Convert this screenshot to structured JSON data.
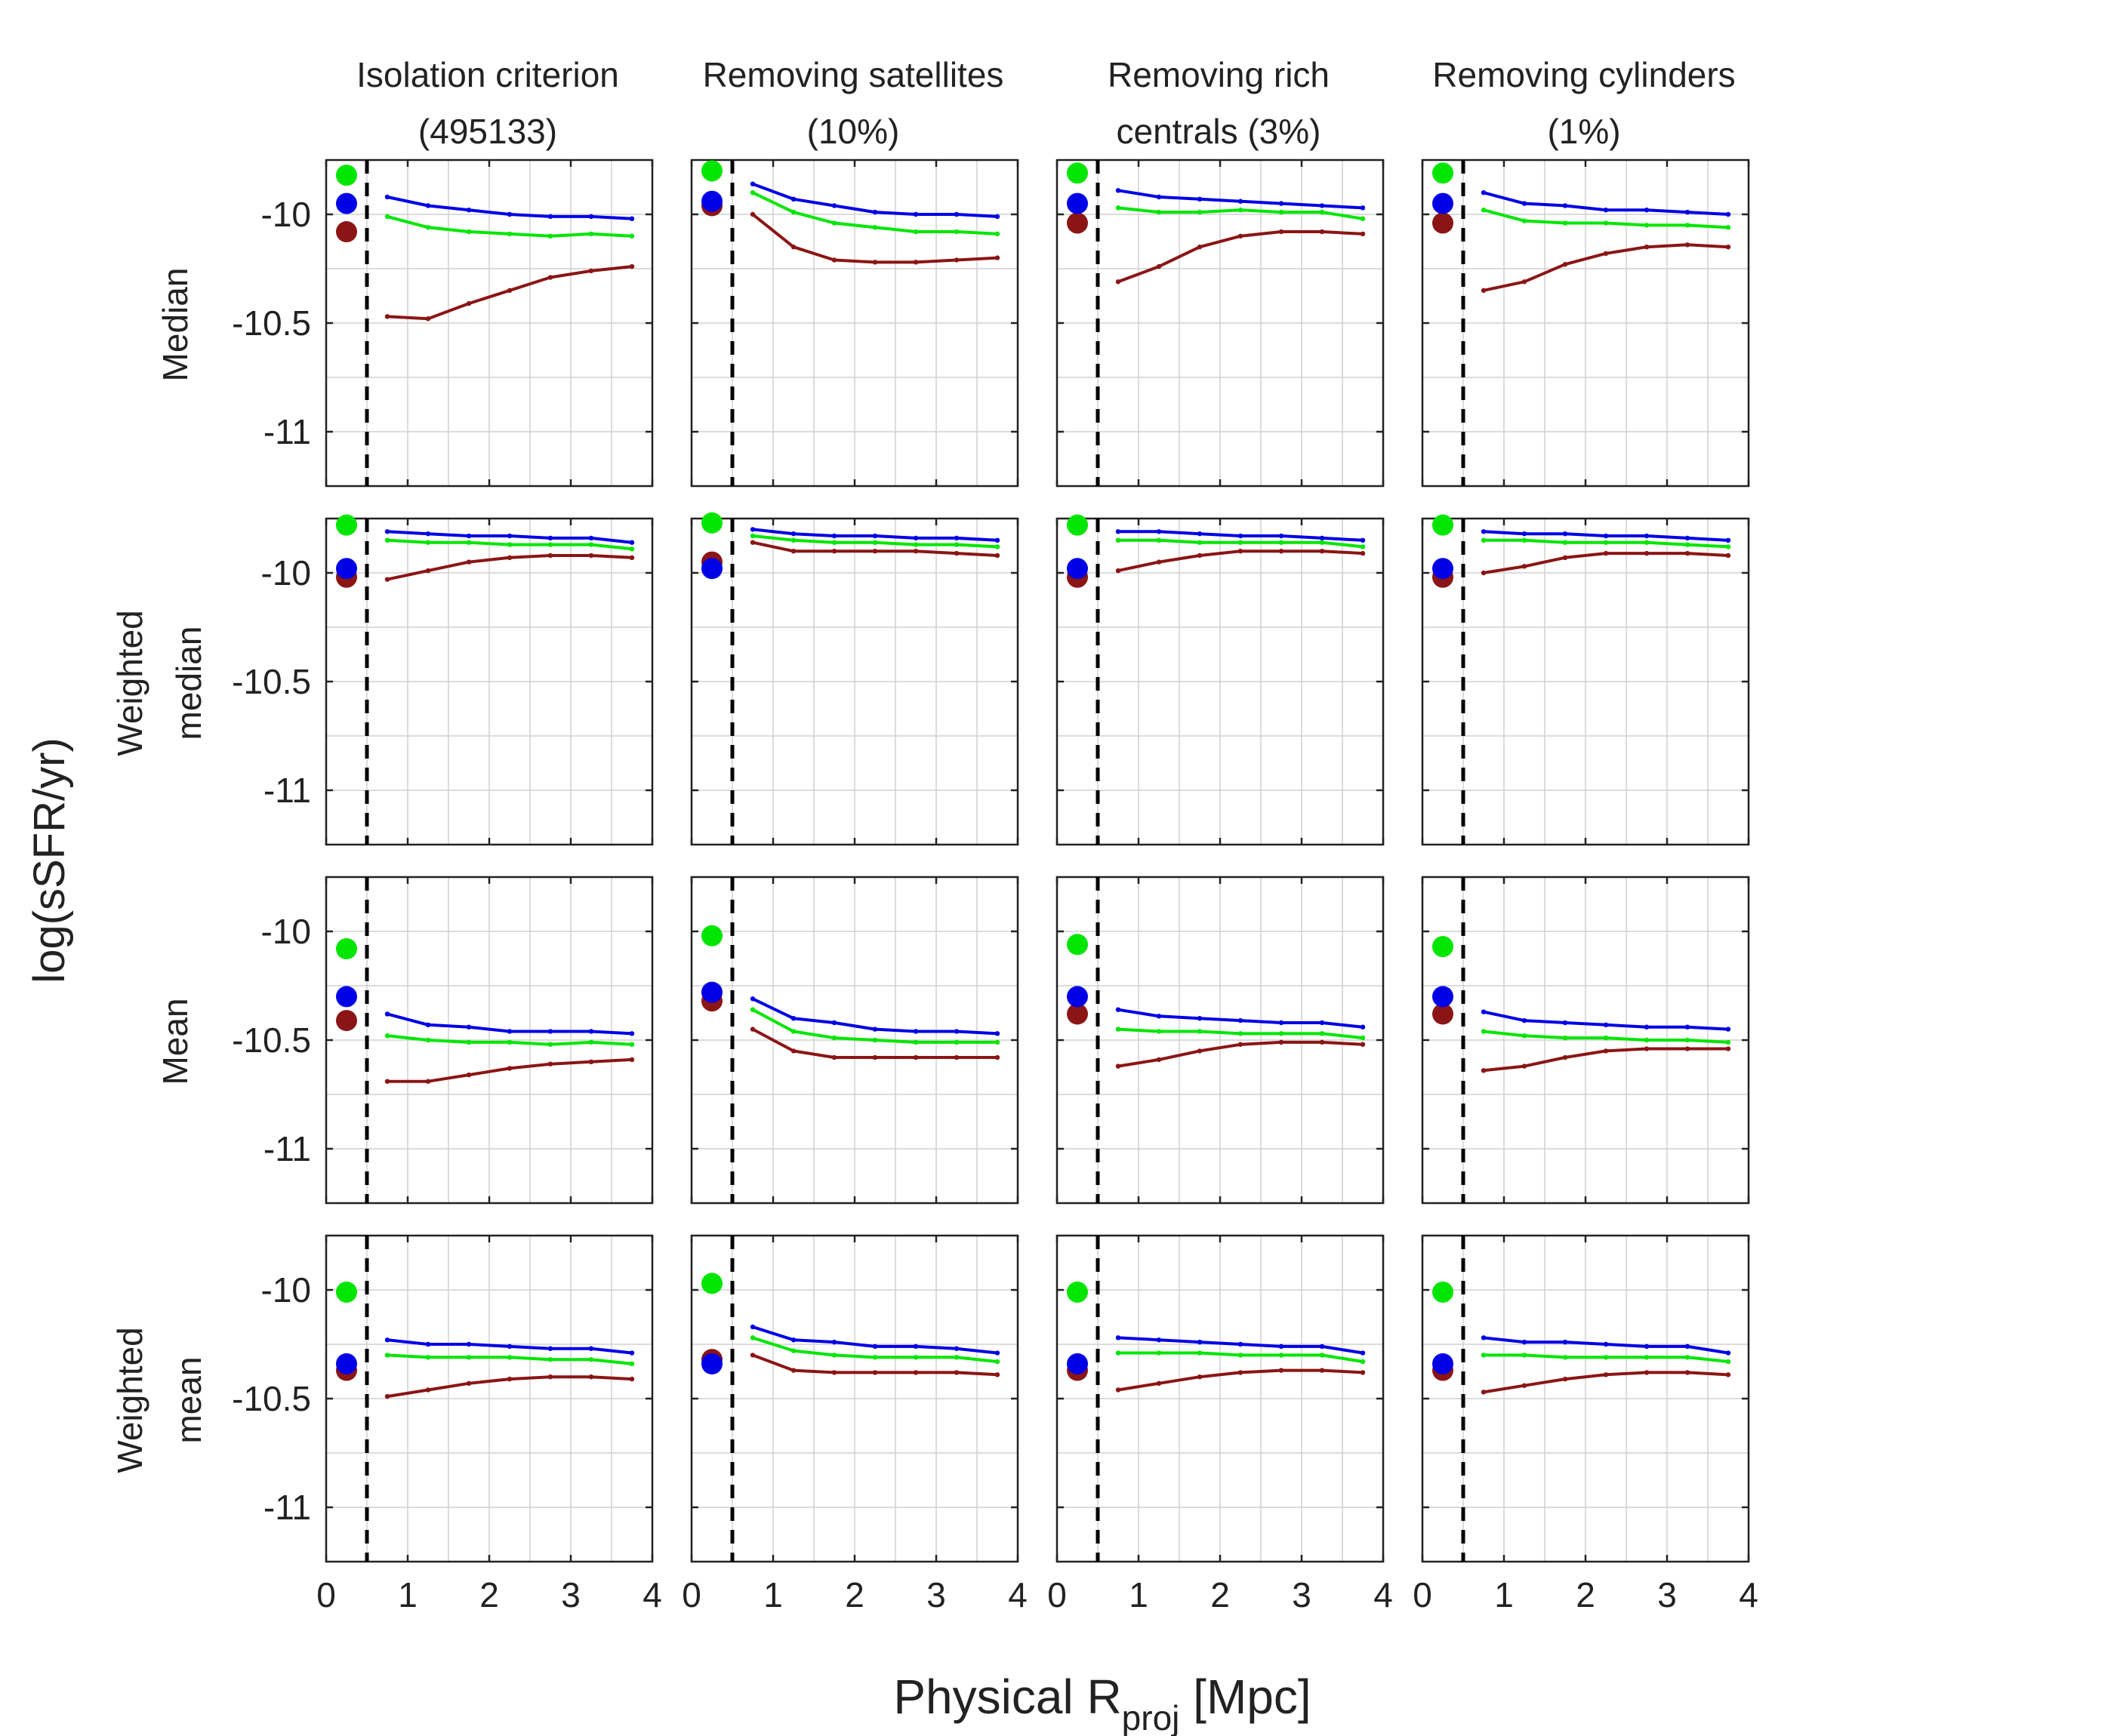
{
  "figure": {
    "ylabel": "log(sSFR/yr)",
    "xlabel_main": "Physical R",
    "xlabel_sub": "proj",
    "xlabel_unit": " [Mpc]"
  },
  "colors": {
    "blue": "#0000e6",
    "green": "#00e600",
    "red": "#8b1515",
    "axis": "#222222",
    "grid": "#d0d0d0",
    "dashed": "#000000"
  },
  "columns": [
    {
      "title_line1": "Isolation criterion",
      "title_line2": "(495133)"
    },
    {
      "title_line1": "Removing satellites",
      "title_line2": "(10%)"
    },
    {
      "title_line1": "Removing rich",
      "title_line2": "centrals (3%)"
    },
    {
      "title_line1": "Removing cylinders",
      "title_line2": "(1%)"
    }
  ],
  "rows": [
    {
      "label_line1": "Median",
      "label_line2": ""
    },
    {
      "label_line1": "Weighted",
      "label_line2": "median"
    },
    {
      "label_line1": "Mean",
      "label_line2": ""
    },
    {
      "label_line1": "Weighted",
      "label_line2": "mean"
    }
  ],
  "chart_data": {
    "type": "line",
    "title": "",
    "xlabel": "Physical R_proj [Mpc]",
    "ylabel": "log(sSFR/yr)",
    "xlim": [
      0,
      4
    ],
    "ylim": [
      -11.25,
      -9.75
    ],
    "xticks": [
      0,
      1,
      2,
      3,
      4
    ],
    "yticks": [
      -11,
      -10.5,
      -10
    ],
    "ytick_labels": [
      "-11",
      "-10.5",
      "-10"
    ],
    "grid": true,
    "vline_x": 0.5,
    "x": [
      0.75,
      1.25,
      1.75,
      2.25,
      2.75,
      3.25,
      3.75
    ],
    "point_x": 0.25,
    "panels": [
      {
        "row": 0,
        "col": 0,
        "points": {
          "green": -9.82,
          "blue": -9.95,
          "red": -10.08
        },
        "series": {
          "blue": [
            -9.92,
            -9.96,
            -9.98,
            -10.0,
            -10.01,
            -10.01,
            -10.02
          ],
          "green": [
            -10.01,
            -10.06,
            -10.08,
            -10.09,
            -10.1,
            -10.09,
            -10.1
          ],
          "red": [
            -10.47,
            -10.48,
            -10.41,
            -10.35,
            -10.29,
            -10.26,
            -10.24
          ]
        }
      },
      {
        "row": 0,
        "col": 1,
        "points": {
          "green": -9.8,
          "blue": -9.94,
          "red": -9.96
        },
        "series": {
          "blue": [
            -9.86,
            -9.93,
            -9.96,
            -9.99,
            -10.0,
            -10.0,
            -10.01
          ],
          "green": [
            -9.9,
            -9.99,
            -10.04,
            -10.06,
            -10.08,
            -10.08,
            -10.09
          ],
          "red": [
            -10.0,
            -10.15,
            -10.21,
            -10.22,
            -10.22,
            -10.21,
            -10.2
          ]
        }
      },
      {
        "row": 0,
        "col": 2,
        "points": {
          "green": -9.81,
          "blue": -9.95,
          "red": -10.04
        },
        "series": {
          "blue": [
            -9.89,
            -9.92,
            -9.93,
            -9.94,
            -9.95,
            -9.96,
            -9.97
          ],
          "green": [
            -9.97,
            -9.99,
            -9.99,
            -9.98,
            -9.99,
            -9.99,
            -10.02
          ],
          "red": [
            -10.31,
            -10.24,
            -10.15,
            -10.1,
            -10.08,
            -10.08,
            -10.09
          ]
        }
      },
      {
        "row": 0,
        "col": 3,
        "points": {
          "green": -9.81,
          "blue": -9.95,
          "red": -10.04
        },
        "series": {
          "blue": [
            -9.9,
            -9.95,
            -9.96,
            -9.98,
            -9.98,
            -9.99,
            -10.0
          ],
          "green": [
            -9.98,
            -10.03,
            -10.04,
            -10.04,
            -10.05,
            -10.05,
            -10.06
          ],
          "red": [
            -10.35,
            -10.31,
            -10.23,
            -10.18,
            -10.15,
            -10.14,
            -10.15
          ]
        }
      },
      {
        "row": 1,
        "col": 0,
        "points": {
          "green": -9.78,
          "blue": -9.98,
          "red": -10.02
        },
        "series": {
          "blue": [
            -9.81,
            -9.82,
            -9.83,
            -9.83,
            -9.84,
            -9.84,
            -9.86
          ],
          "green": [
            -9.85,
            -9.86,
            -9.86,
            -9.87,
            -9.87,
            -9.87,
            -9.89
          ],
          "red": [
            -10.03,
            -9.99,
            -9.95,
            -9.93,
            -9.92,
            -9.92,
            -9.93
          ]
        }
      },
      {
        "row": 1,
        "col": 1,
        "points": {
          "green": -9.77,
          "blue": -9.98,
          "red": -9.95
        },
        "series": {
          "blue": [
            -9.8,
            -9.82,
            -9.83,
            -9.83,
            -9.84,
            -9.84,
            -9.85
          ],
          "green": [
            -9.83,
            -9.85,
            -9.86,
            -9.86,
            -9.87,
            -9.87,
            -9.88
          ],
          "red": [
            -9.86,
            -9.9,
            -9.9,
            -9.9,
            -9.9,
            -9.91,
            -9.92
          ]
        }
      },
      {
        "row": 1,
        "col": 2,
        "points": {
          "green": -9.78,
          "blue": -9.98,
          "red": -10.02
        },
        "series": {
          "blue": [
            -9.81,
            -9.81,
            -9.82,
            -9.83,
            -9.83,
            -9.84,
            -9.85
          ],
          "green": [
            -9.85,
            -9.85,
            -9.86,
            -9.86,
            -9.86,
            -9.86,
            -9.88
          ],
          "red": [
            -9.99,
            -9.95,
            -9.92,
            -9.9,
            -9.9,
            -9.9,
            -9.91
          ]
        }
      },
      {
        "row": 1,
        "col": 3,
        "points": {
          "green": -9.78,
          "blue": -9.98,
          "red": -10.02
        },
        "series": {
          "blue": [
            -9.81,
            -9.82,
            -9.82,
            -9.83,
            -9.83,
            -9.84,
            -9.85
          ],
          "green": [
            -9.85,
            -9.85,
            -9.86,
            -9.86,
            -9.86,
            -9.87,
            -9.88
          ],
          "red": [
            -10.0,
            -9.97,
            -9.93,
            -9.91,
            -9.91,
            -9.91,
            -9.92
          ]
        }
      },
      {
        "row": 2,
        "col": 0,
        "points": {
          "green": -10.08,
          "blue": -10.3,
          "red": -10.41
        },
        "series": {
          "blue": [
            -10.38,
            -10.43,
            -10.44,
            -10.46,
            -10.46,
            -10.46,
            -10.47
          ],
          "green": [
            -10.48,
            -10.5,
            -10.51,
            -10.51,
            -10.52,
            -10.51,
            -10.52
          ],
          "red": [
            -10.69,
            -10.69,
            -10.66,
            -10.63,
            -10.61,
            -10.6,
            -10.59
          ]
        }
      },
      {
        "row": 2,
        "col": 1,
        "points": {
          "green": -10.02,
          "blue": -10.28,
          "red": -10.32
        },
        "series": {
          "blue": [
            -10.31,
            -10.4,
            -10.42,
            -10.45,
            -10.46,
            -10.46,
            -10.47
          ],
          "green": [
            -10.36,
            -10.46,
            -10.49,
            -10.5,
            -10.51,
            -10.51,
            -10.51
          ],
          "red": [
            -10.45,
            -10.55,
            -10.58,
            -10.58,
            -10.58,
            -10.58,
            -10.58
          ]
        }
      },
      {
        "row": 2,
        "col": 2,
        "points": {
          "green": -10.06,
          "blue": -10.3,
          "red": -10.38
        },
        "series": {
          "blue": [
            -10.36,
            -10.39,
            -10.4,
            -10.41,
            -10.42,
            -10.42,
            -10.44
          ],
          "green": [
            -10.45,
            -10.46,
            -10.46,
            -10.47,
            -10.47,
            -10.47,
            -10.49
          ],
          "red": [
            -10.62,
            -10.59,
            -10.55,
            -10.52,
            -10.51,
            -10.51,
            -10.52
          ]
        }
      },
      {
        "row": 2,
        "col": 3,
        "points": {
          "green": -10.07,
          "blue": -10.3,
          "red": -10.38
        },
        "series": {
          "blue": [
            -10.37,
            -10.41,
            -10.42,
            -10.43,
            -10.44,
            -10.44,
            -10.45
          ],
          "green": [
            -10.46,
            -10.48,
            -10.49,
            -10.49,
            -10.5,
            -10.5,
            -10.51
          ],
          "red": [
            -10.64,
            -10.62,
            -10.58,
            -10.55,
            -10.54,
            -10.54,
            -10.54
          ]
        }
      },
      {
        "row": 3,
        "col": 0,
        "points": {
          "green": -10.01,
          "blue": -10.34,
          "red": -10.37
        },
        "series": {
          "blue": [
            -10.23,
            -10.25,
            -10.25,
            -10.26,
            -10.27,
            -10.27,
            -10.29
          ],
          "green": [
            -10.3,
            -10.31,
            -10.31,
            -10.31,
            -10.32,
            -10.32,
            -10.34
          ],
          "red": [
            -10.49,
            -10.46,
            -10.43,
            -10.41,
            -10.4,
            -10.4,
            -10.41
          ]
        }
      },
      {
        "row": 3,
        "col": 1,
        "points": {
          "green": -9.97,
          "blue": -10.34,
          "red": -10.32
        },
        "series": {
          "blue": [
            -10.17,
            -10.23,
            -10.24,
            -10.26,
            -10.26,
            -10.27,
            -10.29
          ],
          "green": [
            -10.22,
            -10.28,
            -10.3,
            -10.31,
            -10.31,
            -10.31,
            -10.33
          ],
          "red": [
            -10.3,
            -10.37,
            -10.38,
            -10.38,
            -10.38,
            -10.38,
            -10.39
          ]
        }
      },
      {
        "row": 3,
        "col": 2,
        "points": {
          "green": -10.01,
          "blue": -10.34,
          "red": -10.37
        },
        "series": {
          "blue": [
            -10.22,
            -10.23,
            -10.24,
            -10.25,
            -10.26,
            -10.26,
            -10.29
          ],
          "green": [
            -10.29,
            -10.29,
            -10.29,
            -10.3,
            -10.3,
            -10.3,
            -10.33
          ],
          "red": [
            -10.46,
            -10.43,
            -10.4,
            -10.38,
            -10.37,
            -10.37,
            -10.38
          ]
        }
      },
      {
        "row": 3,
        "col": 3,
        "points": {
          "green": -10.01,
          "blue": -10.34,
          "red": -10.37
        },
        "series": {
          "blue": [
            -10.22,
            -10.24,
            -10.24,
            -10.25,
            -10.26,
            -10.26,
            -10.29
          ],
          "green": [
            -10.3,
            -10.3,
            -10.31,
            -10.31,
            -10.31,
            -10.31,
            -10.33
          ],
          "red": [
            -10.47,
            -10.44,
            -10.41,
            -10.39,
            -10.38,
            -10.38,
            -10.39
          ]
        }
      }
    ]
  }
}
